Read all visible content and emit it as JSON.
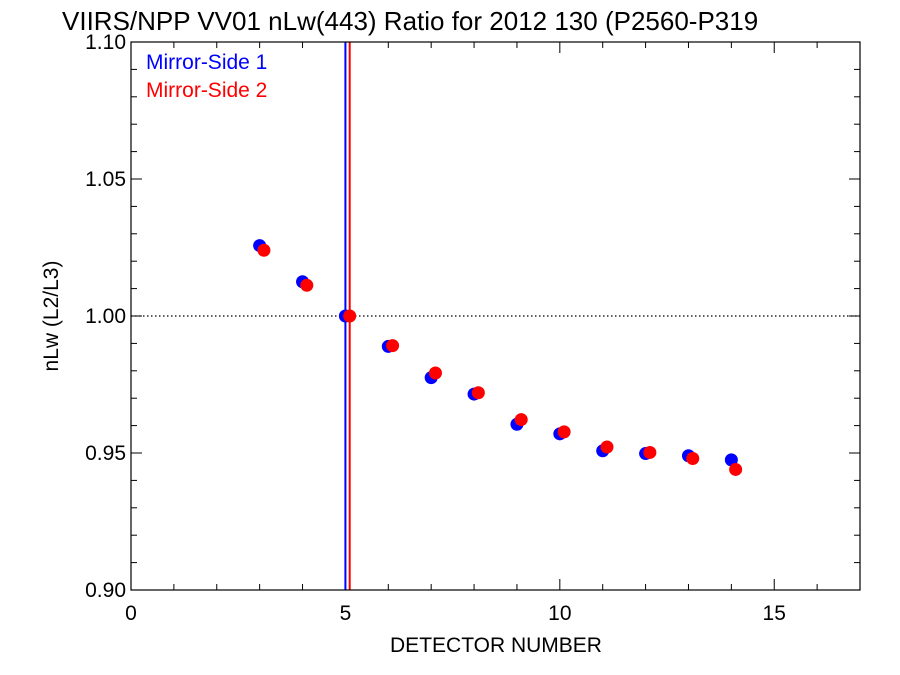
{
  "chart_data": {
    "type": "scatter",
    "title": "VIIRS/NPP VV01 nLw(443) Ratio for 2012 130 (P2560-P319",
    "xlabel": "DETECTOR NUMBER",
    "ylabel": "nLw (L2/L3)",
    "xlim": [
      0,
      17
    ],
    "ylim": [
      0.9,
      1.1
    ],
    "x_ticks": [
      0,
      5,
      10,
      15
    ],
    "x_tick_labels": [
      "0",
      "5",
      "10",
      "15"
    ],
    "y_ticks": [
      0.9,
      0.95,
      1.0,
      1.05,
      1.1
    ],
    "y_tick_labels": [
      "0.90",
      "0.95",
      "1.00",
      "1.05",
      "1.10"
    ],
    "grid": false,
    "legend_position": "top-left",
    "reference_line_y": 1.0,
    "series": [
      {
        "name": "Mirror-Side 1",
        "color": "#0000ff",
        "marker": "circle",
        "x": [
          3,
          4,
          5,
          6,
          7,
          8,
          9,
          10,
          11,
          12,
          13,
          14
        ],
        "values": [
          1.0257,
          1.0125,
          1.0,
          0.9889,
          0.9775,
          0.9715,
          0.9605,
          0.957,
          0.9508,
          0.9498,
          0.949,
          0.9475
        ],
        "vline_x": 5.0
      },
      {
        "name": "Mirror-Side 2",
        "color": "#ff0000",
        "marker": "circle",
        "x": [
          3.1,
          4.1,
          5.1,
          6.1,
          7.1,
          8.1,
          9.1,
          10.1,
          11.1,
          12.1,
          13.1,
          14.1
        ],
        "values": [
          1.024,
          1.0112,
          1.0,
          0.9892,
          0.9792,
          0.972,
          0.9622,
          0.9577,
          0.9522,
          0.9502,
          0.948,
          0.944
        ],
        "vline_x": 5.1
      }
    ]
  }
}
